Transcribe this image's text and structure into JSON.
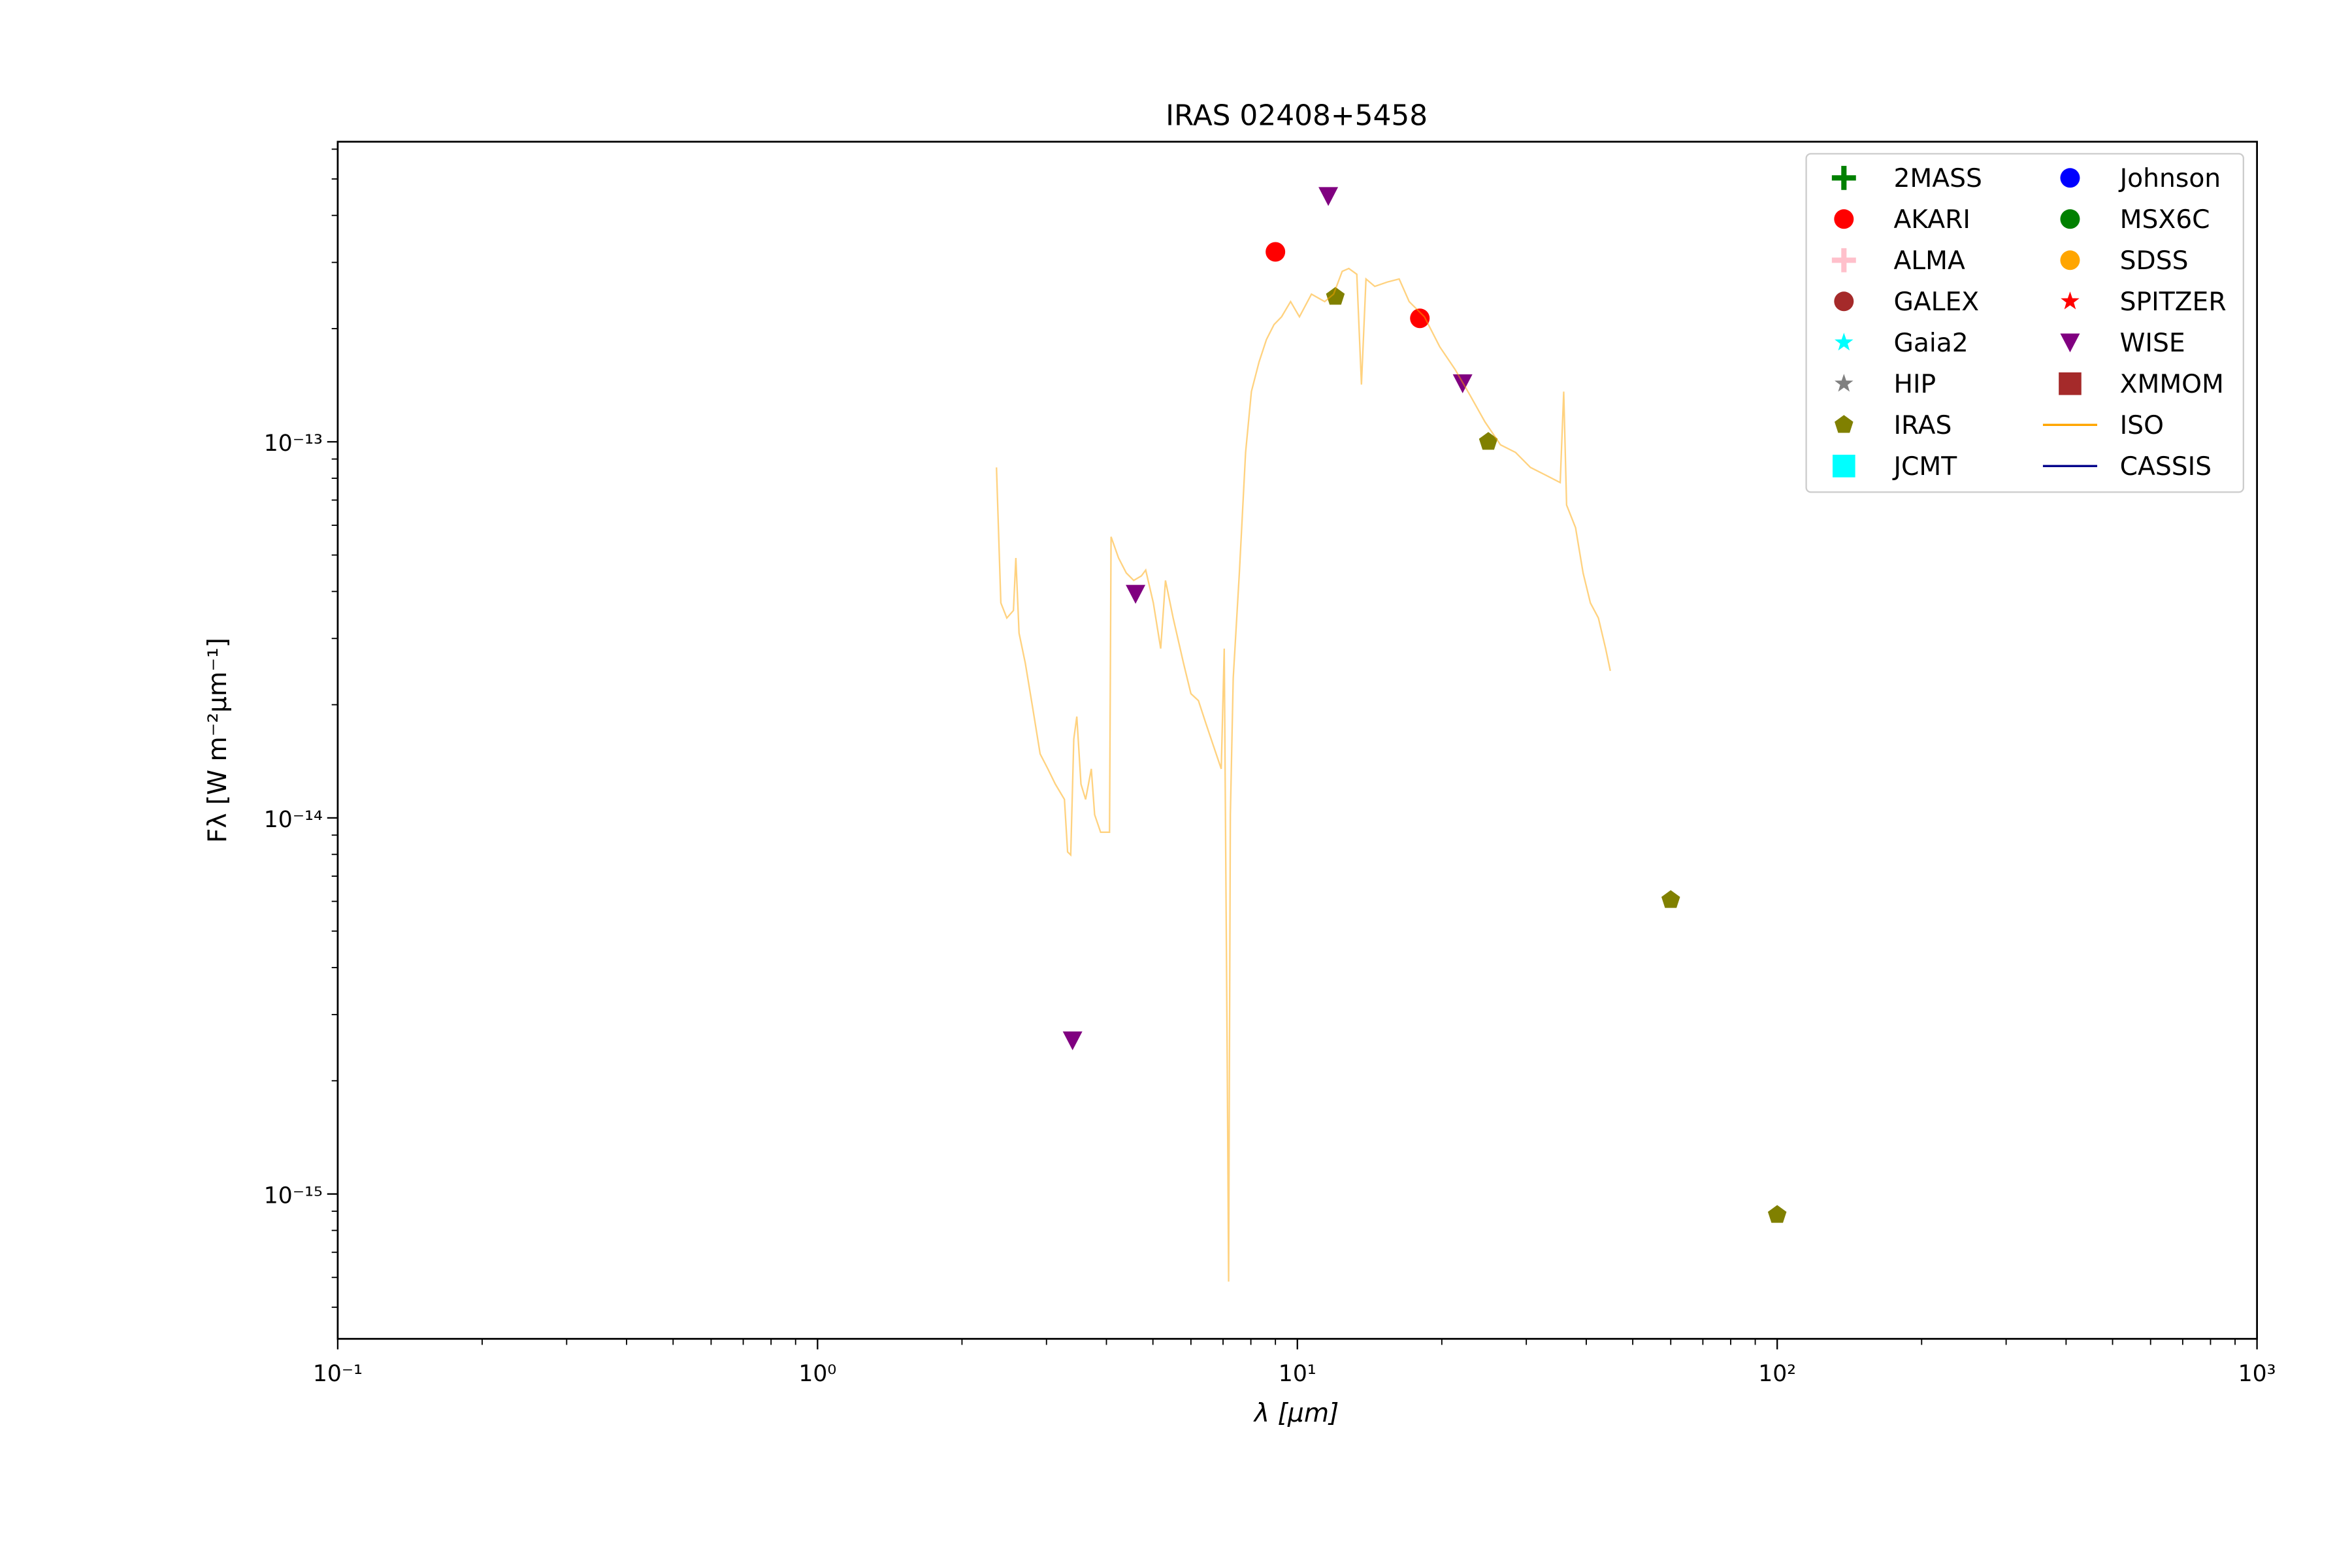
{
  "chart_data": {
    "type": "scatter",
    "title": "IRAS 02408+5458",
    "xlabel": "λ [μm]",
    "ylabel": "Fλ [W m⁻²μm⁻¹]",
    "xscale": "log",
    "yscale": "log",
    "xlim": [
      0.1,
      1000
    ],
    "ylim": [
      4.12e-16,
      6.28e-13
    ],
    "xticks": [
      {
        "value": 0.1,
        "label": "10⁻¹"
      },
      {
        "value": 1,
        "label": "10⁰"
      },
      {
        "value": 10,
        "label": "10¹"
      },
      {
        "value": 100,
        "label": "10²"
      },
      {
        "value": 1000,
        "label": "10³"
      }
    ],
    "yticks": [
      {
        "value": 1e-15,
        "label": "10⁻¹⁵"
      },
      {
        "value": 1e-14,
        "label": "10⁻¹⁴"
      },
      {
        "value": 1e-13,
        "label": "10⁻¹³"
      }
    ],
    "legend": "upper right",
    "series": [
      {
        "name": "2MASS",
        "color": "#008000",
        "marker": "plus",
        "x": [],
        "y": []
      },
      {
        "name": "AKARI",
        "color": "#ff0000",
        "marker": "circle",
        "x": [
          9.0,
          18.0
        ],
        "y": [
          3.2e-13,
          2.13e-13
        ]
      },
      {
        "name": "ALMA",
        "color": "#ffc0cb",
        "marker": "plus",
        "x": [],
        "y": []
      },
      {
        "name": "GALEX",
        "color": "#a52a2a",
        "marker": "circle",
        "x": [],
        "y": []
      },
      {
        "name": "Gaia2",
        "color": "#00ffff",
        "marker": "star",
        "x": [],
        "y": []
      },
      {
        "name": "HIP",
        "color": "#808080",
        "marker": "star",
        "x": [],
        "y": []
      },
      {
        "name": "IRAS",
        "color": "#808000",
        "marker": "pentagon",
        "x": [
          12.0,
          25,
          60,
          100
        ],
        "y": [
          2.43e-13,
          1e-13,
          6.05e-15,
          8.8e-16
        ]
      },
      {
        "name": "JCMT",
        "color": "#00ffff",
        "marker": "square",
        "x": [],
        "y": []
      },
      {
        "name": "Johnson",
        "color": "#0000ff",
        "marker": "circle",
        "x": [],
        "y": []
      },
      {
        "name": "MSX6C",
        "color": "#008000",
        "marker": "circle",
        "x": [],
        "y": []
      },
      {
        "name": "SDSS",
        "color": "#ffa500",
        "marker": "circle",
        "x": [],
        "y": []
      },
      {
        "name": "SPITZER",
        "color": "#ff0000",
        "marker": "star",
        "x": [],
        "y": []
      },
      {
        "name": "WISE",
        "color": "#800080",
        "marker": "triangle-down",
        "x": [
          11.6,
          22.1,
          4.6,
          3.4
        ],
        "y": [
          4.5e-13,
          1.43e-13,
          3.94e-14,
          2.56e-15
        ]
      },
      {
        "name": "XMMOM",
        "color": "#a52a2a",
        "marker": "square",
        "x": [],
        "y": []
      },
      {
        "name": "ISO",
        "color": "#ffa500",
        "marker": "line",
        "x": [
          2.36,
          2.41,
          2.48,
          2.56,
          2.59,
          2.63,
          2.71,
          2.81,
          2.91,
          3.02,
          3.13,
          3.27,
          3.32,
          3.37,
          3.42,
          3.47,
          3.54,
          3.62,
          3.72,
          3.78,
          3.89,
          4.06,
          4.09,
          4.24,
          4.4,
          4.56,
          4.73,
          4.83,
          5.01,
          5.19,
          5.31,
          5.51,
          5.79,
          6.0,
          6.22,
          6.45,
          6.69,
          6.94,
          7.04,
          7.14,
          7.19,
          7.25,
          7.35,
          7.57,
          7.8,
          8.02,
          8.32,
          8.62,
          8.94,
          9.27,
          9.68,
          10.1,
          10.7,
          11.4,
          11.9,
          12.4,
          12.8,
          13.3,
          13.6,
          13.9,
          14.5,
          15.4,
          16.3,
          17.1,
          18.4,
          19.8,
          21.3,
          22.9,
          24.6,
          26.5,
          28.5,
          30.6,
          32.9,
          35.3,
          35.9,
          36.4,
          38.0,
          39.4,
          40.8,
          42.4,
          43.9,
          44.9
        ],
        "y": [
          8.55e-14,
          3.73e-14,
          3.4e-14,
          3.56e-14,
          4.91e-14,
          3.1e-14,
          2.58e-14,
          1.95e-14,
          1.48e-14,
          1.35e-14,
          1.23e-14,
          1.12e-14,
          8.12e-15,
          7.97e-15,
          1.62e-14,
          1.86e-14,
          1.23e-14,
          1.12e-14,
          1.35e-14,
          1.02e-14,
          9.16e-15,
          9.16e-15,
          5.59e-14,
          4.91e-14,
          4.48e-14,
          4.28e-14,
          4.4e-14,
          4.56e-14,
          3.73e-14,
          2.82e-14,
          4.28e-14,
          3.4e-14,
          2.58e-14,
          2.14e-14,
          2.05e-14,
          1.78e-14,
          1.55e-14,
          1.35e-14,
          2.82e-14,
          2.34e-15,
          5.85e-16,
          1.02e-14,
          2.35e-14,
          4.48e-14,
          9.37e-14,
          1.36e-13,
          1.63e-13,
          1.87e-13,
          2.05e-13,
          2.15e-13,
          2.36e-13,
          2.15e-13,
          2.47e-13,
          2.36e-13,
          2.47e-13,
          2.84e-13,
          2.89e-13,
          2.79e-13,
          1.42e-13,
          2.71e-13,
          2.59e-13,
          2.66e-13,
          2.71e-13,
          2.36e-13,
          2.15e-13,
          1.79e-13,
          1.56e-13,
          1.33e-13,
          1.13e-13,
          9.82e-14,
          9.37e-14,
          8.55e-14,
          8.16e-14,
          7.79e-14,
          1.36e-13,
          6.79e-14,
          5.91e-14,
          4.48e-14,
          3.73e-14,
          3.4e-14,
          2.82e-14,
          2.46e-14
        ]
      },
      {
        "name": "CASSIS",
        "color": "#00008b",
        "marker": "line",
        "x": [],
        "y": []
      }
    ]
  }
}
